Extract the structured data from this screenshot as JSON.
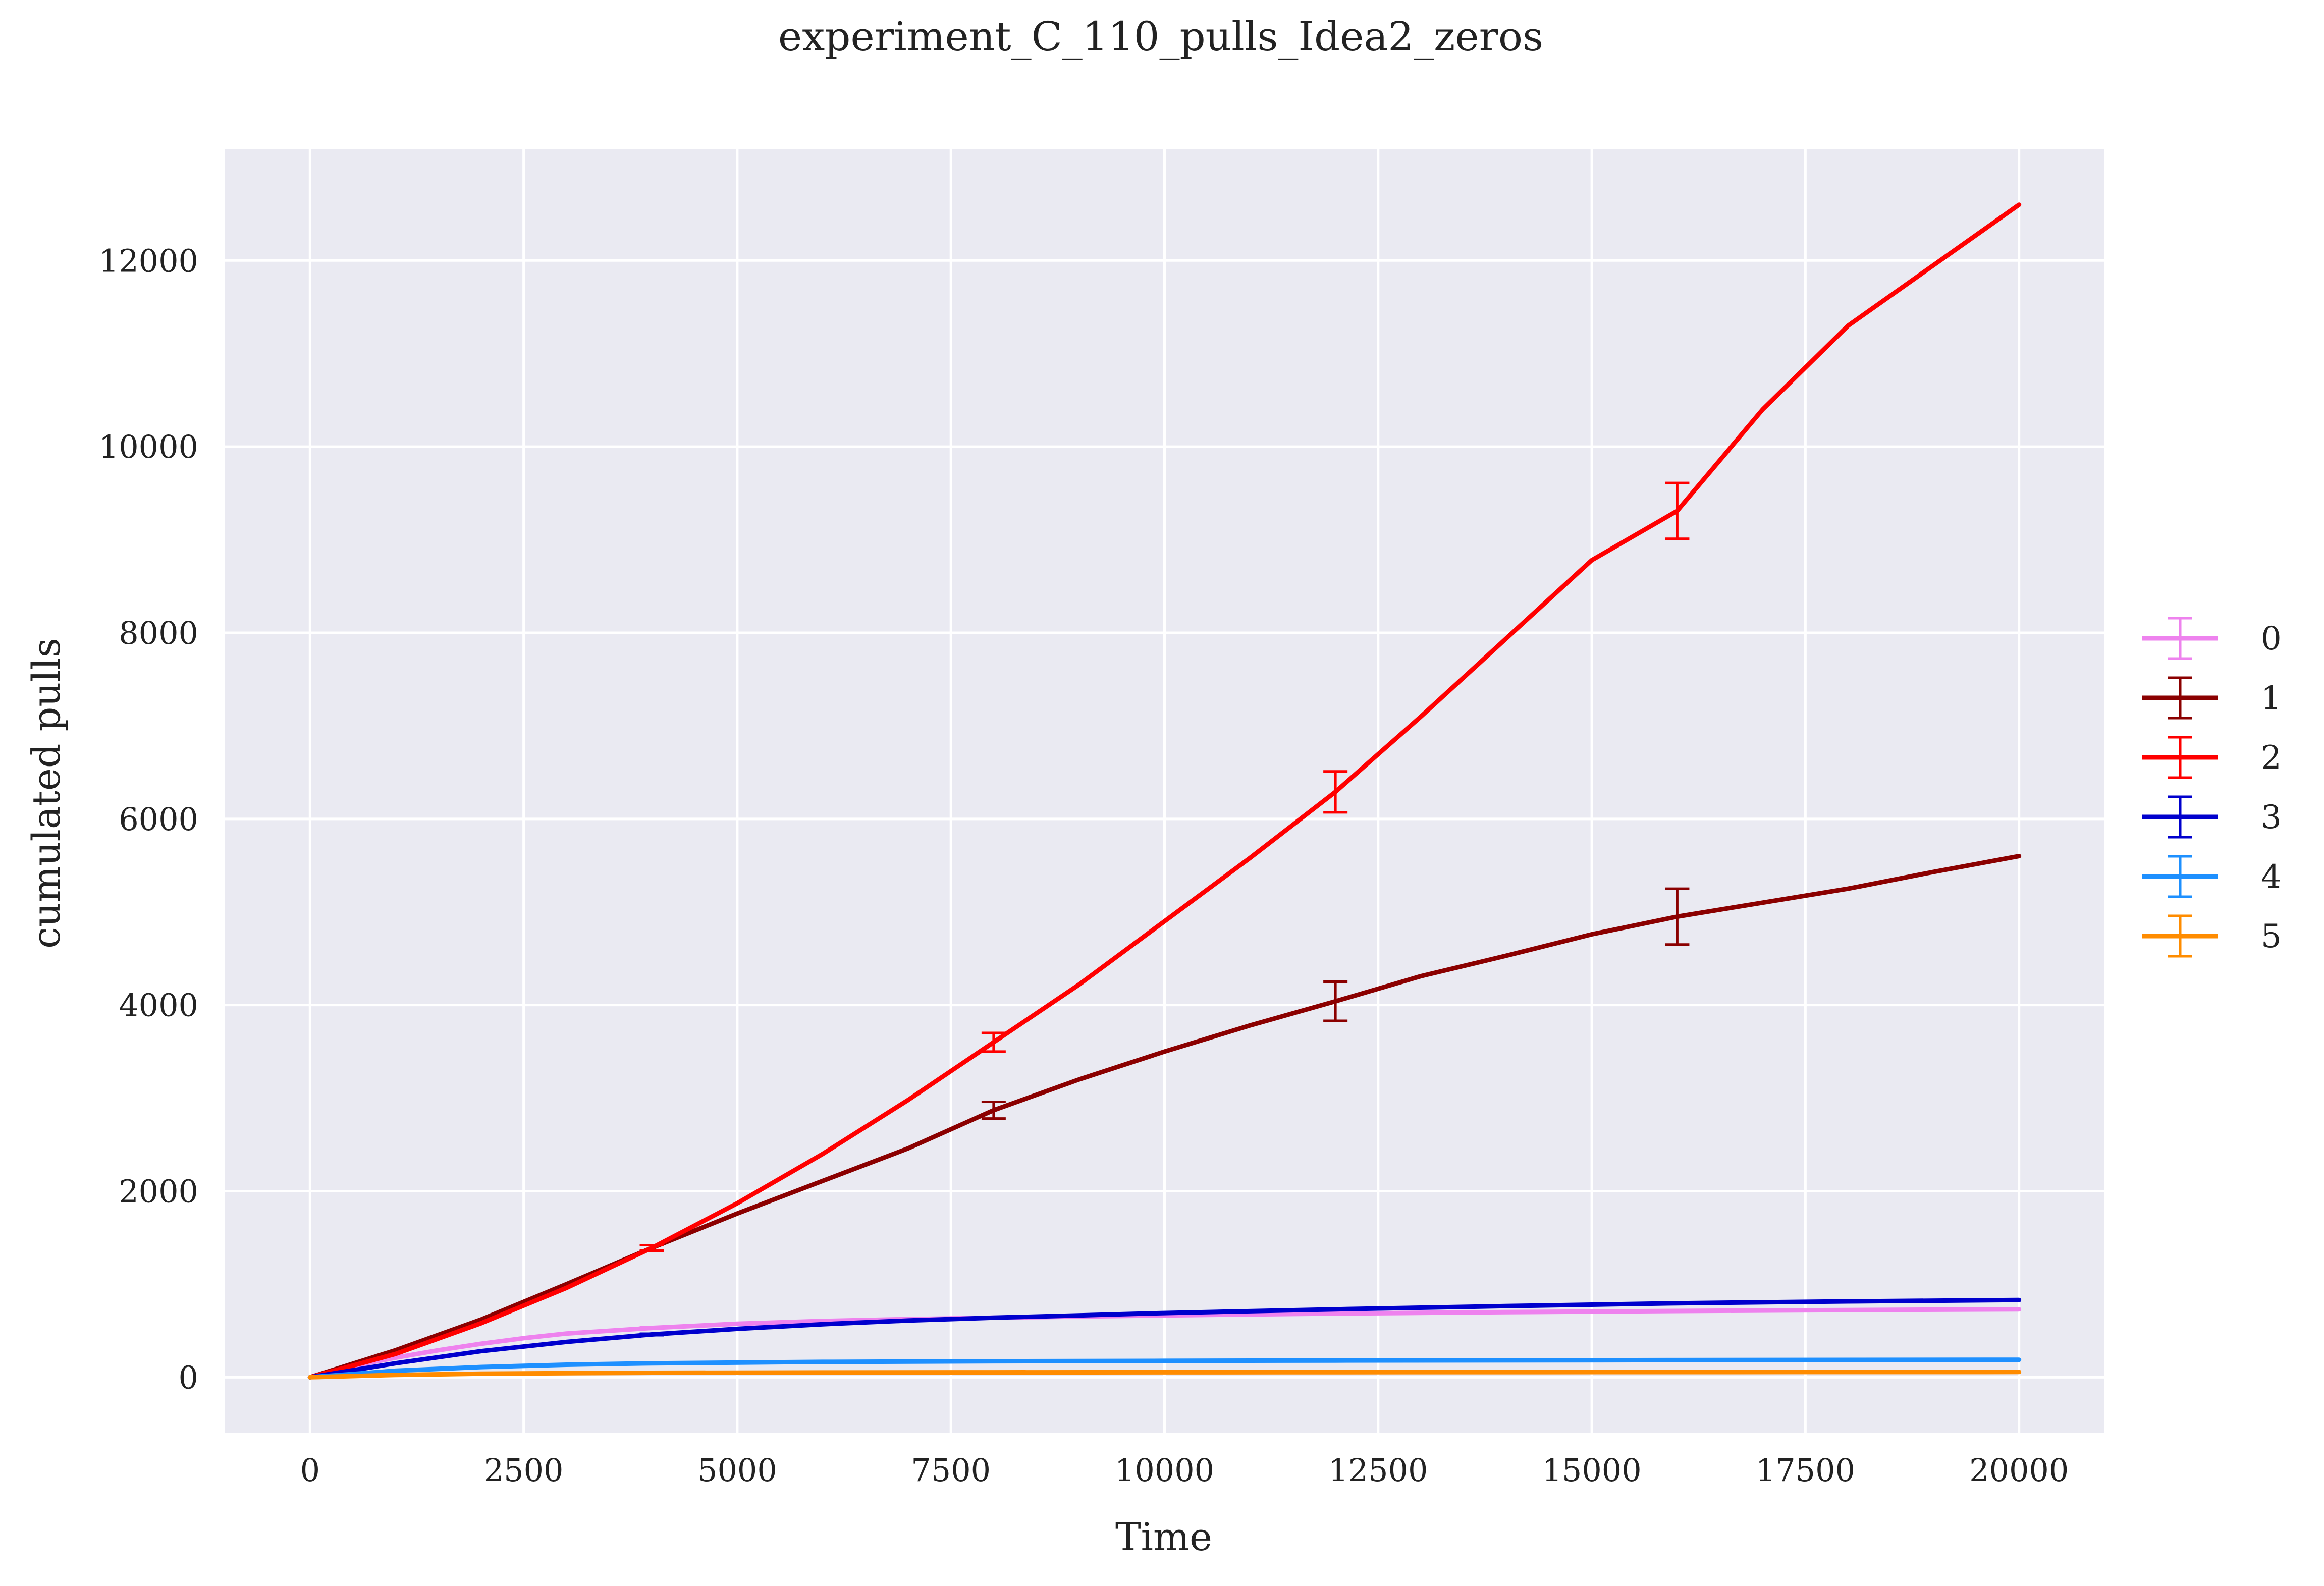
{
  "chart_data": {
    "type": "line",
    "title": "experiment_C_110_pulls_Idea2_zeros",
    "xlabel": "Time",
    "ylabel": "cumulated pulls",
    "xlim": [
      -1000,
      21000
    ],
    "ylim": [
      -600,
      13200
    ],
    "xticks": [
      0,
      2500,
      5000,
      7500,
      10000,
      12500,
      15000,
      17500,
      20000
    ],
    "yticks": [
      0,
      2000,
      4000,
      6000,
      8000,
      10000,
      12000
    ],
    "grid": true,
    "background": "#eaeaf2",
    "legend_position": "right",
    "series": [
      {
        "name": "0",
        "color": "#ee82ee",
        "x": [
          0,
          500,
          1000,
          1500,
          2000,
          2500,
          3000,
          4000,
          5000,
          6000,
          7000,
          8000,
          10000,
          12000,
          14000,
          16000,
          18000,
          20000
        ],
        "y": [
          0,
          120,
          210,
          290,
          360,
          420,
          470,
          530,
          575,
          605,
          625,
          640,
          665,
          685,
          700,
          712,
          722,
          730
        ],
        "errors": [
          {
            "x": 4000,
            "y": 530,
            "err": 8
          },
          {
            "x": 8000,
            "y": 640,
            "err": 8
          },
          {
            "x": 12000,
            "y": 685,
            "err": 8
          },
          {
            "x": 16000,
            "y": 712,
            "err": 8
          }
        ]
      },
      {
        "name": "1",
        "color": "#8b0000",
        "x": [
          0,
          1000,
          2000,
          3000,
          4000,
          5000,
          6000,
          7000,
          8000,
          9000,
          10000,
          11000,
          12000,
          13000,
          14000,
          15000,
          16000,
          17000,
          18000,
          19000,
          20000
        ],
        "y": [
          0,
          290,
          620,
          1000,
          1390,
          1760,
          2110,
          2460,
          2870,
          3200,
          3500,
          3780,
          4040,
          4310,
          4530,
          4760,
          4950,
          5100,
          5250,
          5430,
          5600
        ],
        "errors": [
          {
            "x": 4000,
            "y": 1390,
            "err": 30
          },
          {
            "x": 8000,
            "y": 2870,
            "err": 90
          },
          {
            "x": 12000,
            "y": 4040,
            "err": 210
          },
          {
            "x": 16000,
            "y": 4950,
            "err": 300
          }
        ]
      },
      {
        "name": "2",
        "color": "#ff0000",
        "x": [
          0,
          1000,
          2000,
          3000,
          4000,
          5000,
          6000,
          7000,
          8000,
          9000,
          10000,
          11000,
          12000,
          13000,
          14000,
          15000,
          16000,
          17000,
          18000,
          19000,
          20000
        ],
        "y": [
          0,
          250,
          580,
          960,
          1390,
          1870,
          2400,
          2980,
          3600,
          4220,
          4900,
          5580,
          6290,
          7100,
          7940,
          8780,
          9310,
          10400,
          11300,
          11950,
          12600
        ],
        "errors": [
          {
            "x": 4000,
            "y": 1390,
            "err": 30
          },
          {
            "x": 8000,
            "y": 3600,
            "err": 100
          },
          {
            "x": 12000,
            "y": 6290,
            "err": 220
          },
          {
            "x": 16000,
            "y": 9310,
            "err": 300
          }
        ]
      },
      {
        "name": "3",
        "color": "#0000cd",
        "x": [
          0,
          1000,
          2000,
          3000,
          4000,
          5000,
          6000,
          7000,
          8000,
          10000,
          12000,
          14000,
          16000,
          18000,
          20000
        ],
        "y": [
          0,
          150,
          280,
          380,
          460,
          520,
          570,
          610,
          640,
          690,
          730,
          765,
          795,
          815,
          830
        ],
        "errors": [
          {
            "x": 4000,
            "y": 460,
            "err": 8
          },
          {
            "x": 8000,
            "y": 640,
            "err": 8
          },
          {
            "x": 12000,
            "y": 730,
            "err": 8
          },
          {
            "x": 16000,
            "y": 795,
            "err": 8
          }
        ]
      },
      {
        "name": "4",
        "color": "#1e90ff",
        "x": [
          0,
          1000,
          2000,
          3000,
          4000,
          6000,
          8000,
          10000,
          12000,
          16000,
          20000
        ],
        "y": [
          0,
          70,
          110,
          135,
          150,
          165,
          172,
          176,
          180,
          184,
          188
        ],
        "errors": [
          {
            "x": 4000,
            "y": 150,
            "err": 5
          },
          {
            "x": 8000,
            "y": 172,
            "err": 5
          },
          {
            "x": 12000,
            "y": 180,
            "err": 5
          },
          {
            "x": 16000,
            "y": 184,
            "err": 5
          }
        ]
      },
      {
        "name": "5",
        "color": "#ff8c00",
        "x": [
          0,
          1000,
          2000,
          3000,
          4000,
          6000,
          8000,
          12000,
          16000,
          20000
        ],
        "y": [
          0,
          25,
          38,
          44,
          48,
          51,
          53,
          55,
          56,
          57
        ],
        "errors": [
          {
            "x": 4000,
            "y": 48,
            "err": 3
          },
          {
            "x": 8000,
            "y": 53,
            "err": 3
          },
          {
            "x": 12000,
            "y": 55,
            "err": 3
          },
          {
            "x": 16000,
            "y": 56,
            "err": 3
          }
        ]
      }
    ]
  }
}
